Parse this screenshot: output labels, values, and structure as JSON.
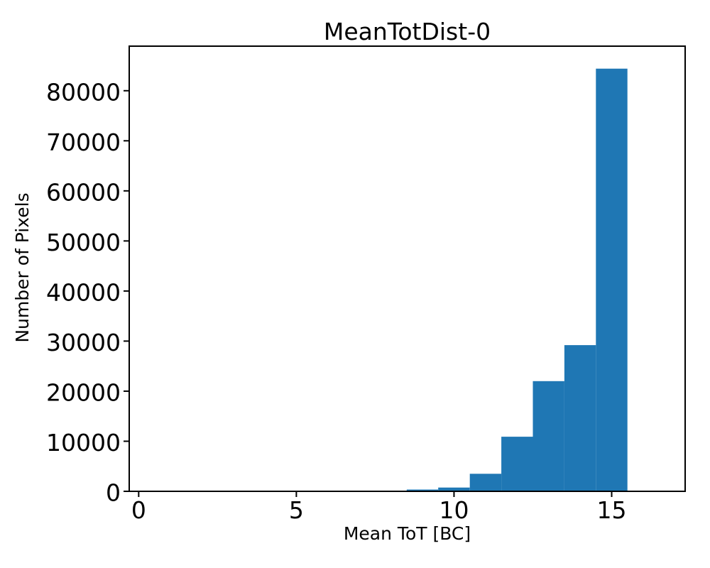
{
  "figure": {
    "background_color": "#ffffff",
    "text_color": "#000000",
    "axis_color": "#000000"
  },
  "chart_data": {
    "type": "bar",
    "subtype": "histogram",
    "title": "MeanTotDist-0",
    "xlabel": "Mean ToT [BC]",
    "ylabel": "Number of Pixels",
    "bar_color": "#1f77b4",
    "bin_edges": [
      8.5,
      9.5,
      10.5,
      11.5,
      12.5,
      13.5,
      14.5,
      15.5
    ],
    "bin_centers": [
      9,
      10,
      11,
      12,
      13,
      14,
      15
    ],
    "values": [
      350,
      750,
      3500,
      10900,
      22000,
      29200,
      84400
    ],
    "xticks": [
      0,
      5,
      10,
      15
    ],
    "yticks": [
      0,
      10000,
      20000,
      30000,
      40000,
      50000,
      60000,
      70000,
      80000
    ],
    "xtick_labels": [
      "0",
      "5",
      "10",
      "15"
    ],
    "ytick_labels": [
      "0",
      "10000",
      "20000",
      "30000",
      "40000",
      "50000",
      "60000",
      "70000",
      "80000"
    ],
    "xlim": [
      -0.3,
      17.33
    ],
    "ylim": [
      0,
      88900
    ],
    "grid": false,
    "legend": null
  }
}
